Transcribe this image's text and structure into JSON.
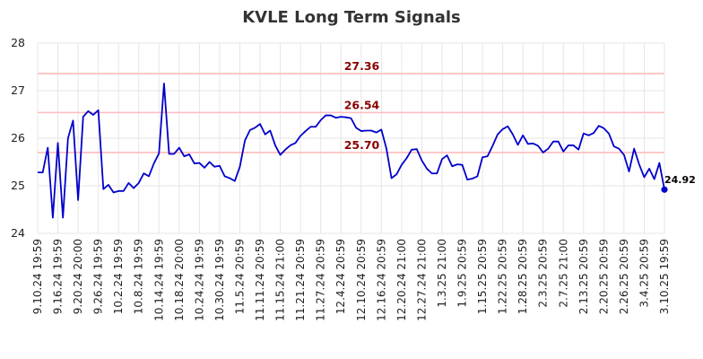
{
  "chart_data": {
    "type": "line",
    "title": "KVLE Long Term Signals",
    "xlabel": "",
    "ylabel": "",
    "ylim": [
      24,
      28
    ],
    "yticks": [
      "24",
      "25",
      "26",
      "27",
      "28"
    ],
    "grid": true,
    "x_tick_labels": [
      "9.10.24 19:59",
      "9.16.24 19:59",
      "9.20.24 20:00",
      "9.26.24 19:59",
      "10.2.24 19:59",
      "10.8.24 19:59",
      "10.14.24 19:59",
      "10.18.24 20:00",
      "10.24.24 19:59",
      "10.30.24 19:59",
      "11.5.24 20:59",
      "11.11.24 20:59",
      "11.15.24 21:00",
      "11.21.24 20:59",
      "11.27.24 20:59",
      "12.4.24 20:59",
      "12.10.24 20:59",
      "12.16.24 20:59",
      "12.20.24 21:00",
      "12.27.24 21:00",
      "1.3.25 21:00",
      "1.9.25 20:59",
      "1.15.25 20:59",
      "1.22.25 20:59",
      "1.28.25 20:59",
      "2.3.25 20:59",
      "2.7.25 21:00",
      "2.13.25 20:59",
      "2.20.25 20:59",
      "2.26.25 20:59",
      "3.4.25 20:59",
      "3.10.25 19:59"
    ],
    "reference_lines": [
      {
        "value": 27.36,
        "label": "27.36"
      },
      {
        "value": 26.54,
        "label": "26.54"
      },
      {
        "value": 25.7,
        "label": "25.70"
      }
    ],
    "series": [
      {
        "color": "#0000cc",
        "values": [
          25.28,
          25.28,
          25.8,
          24.33,
          25.9,
          24.33,
          26.0,
          26.37,
          24.7,
          26.45,
          26.57,
          26.49,
          26.59,
          24.93,
          25.02,
          24.86,
          24.89,
          24.89,
          25.06,
          24.95,
          25.06,
          25.26,
          25.2,
          25.47,
          25.68,
          27.15,
          25.67,
          25.67,
          25.8,
          25.62,
          25.66,
          25.47,
          25.48,
          25.38,
          25.5,
          25.4,
          25.42,
          25.2,
          25.16,
          25.1,
          25.4,
          25.95,
          26.17,
          26.22,
          26.3,
          26.08,
          26.16,
          25.85,
          25.65,
          25.76,
          25.85,
          25.9,
          26.05,
          26.15,
          26.24,
          26.24,
          26.38,
          26.48,
          26.48,
          26.43,
          26.45,
          26.44,
          26.42,
          26.22,
          26.15,
          26.16,
          26.16,
          26.12,
          26.18,
          25.78,
          25.16,
          25.24,
          25.44,
          25.58,
          25.76,
          25.77,
          25.53,
          25.36,
          25.26,
          25.26,
          25.56,
          25.64,
          25.41,
          25.45,
          25.44,
          25.13,
          25.15,
          25.2,
          25.6,
          25.62,
          25.84,
          26.08,
          26.19,
          26.25,
          26.08,
          25.86,
          26.06,
          25.88,
          25.89,
          25.84,
          25.7,
          25.78,
          25.93,
          25.93,
          25.72,
          25.85,
          25.85,
          25.76,
          26.1,
          26.06,
          26.11,
          26.26,
          26.21,
          26.1,
          25.83,
          25.78,
          25.65,
          25.3,
          25.78,
          25.45,
          25.18,
          25.36,
          25.14,
          25.48,
          24.92
        ]
      }
    ],
    "last_value_label": "24.92"
  }
}
